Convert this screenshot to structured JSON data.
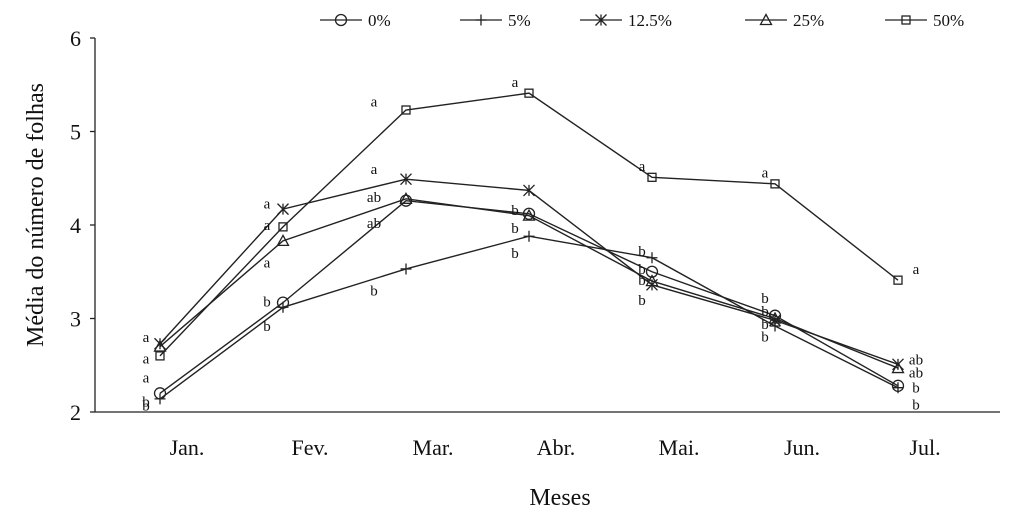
{
  "chart_data": {
    "type": "line",
    "xlabel": "Meses",
    "ylabel": "Média do número de folhas",
    "categories": [
      "Jan.",
      "Fev.",
      "Mar.",
      "Abr.",
      "Mai.",
      "Jun.",
      "Jul."
    ],
    "ylim": [
      2,
      6
    ],
    "yticks": [
      "2",
      "3",
      "4",
      "5",
      "6"
    ],
    "grid": false,
    "legend_position": "top",
    "series": [
      {
        "name": "0%",
        "marker": "circle",
        "values": [
          2.2,
          3.17,
          4.26,
          4.12,
          3.5,
          3.03,
          2.28
        ]
      },
      {
        "name": "5%",
        "marker": "plus",
        "values": [
          2.14,
          3.12,
          3.53,
          3.88,
          3.65,
          2.92,
          2.26
        ]
      },
      {
        "name": "12.5%",
        "marker": "star",
        "values": [
          2.73,
          4.17,
          4.49,
          4.37,
          3.36,
          2.98,
          2.51
        ]
      },
      {
        "name": "25%",
        "marker": "triangle",
        "values": [
          2.7,
          3.83,
          4.28,
          4.1,
          3.4,
          3.0,
          2.47
        ]
      },
      {
        "name": "50%",
        "marker": "square",
        "values": [
          2.6,
          3.98,
          5.23,
          5.41,
          4.51,
          4.44,
          3.41
        ]
      }
    ],
    "annotations": [
      {
        "text": "a",
        "x": "Jan.",
        "y": 2.8
      },
      {
        "text": "a",
        "x": "Jan.",
        "y": 2.57
      },
      {
        "text": "a",
        "x": "Jan.",
        "y": 2.37
      },
      {
        "text": "b",
        "x": "Jan.",
        "y": 2.11
      },
      {
        "text": "b",
        "x": "Jan.",
        "y": 2.07
      },
      {
        "text": "a",
        "x": "Fev.",
        "y": 4.23
      },
      {
        "text": "a",
        "x": "Fev.",
        "y": 4.0
      },
      {
        "text": "a",
        "x": "Fev.",
        "y": 3.6
      },
      {
        "text": "b",
        "x": "Fev.",
        "y": 3.18
      },
      {
        "text": "b",
        "x": "Fev.",
        "y": 2.92
      },
      {
        "text": "a",
        "x": "Mar.",
        "y": 5.32
      },
      {
        "text": "a",
        "x": "Mar.",
        "y": 4.6
      },
      {
        "text": "ab",
        "x": "Mar.",
        "y": 4.3
      },
      {
        "text": "ab",
        "x": "Mar.",
        "y": 4.02
      },
      {
        "text": "b",
        "x": "Mar.",
        "y": 3.3
      },
      {
        "text": "a",
        "x": "Abr.",
        "y": 5.53
      },
      {
        "text": "b",
        "x": "Abr.",
        "y": 4.16
      },
      {
        "text": "b",
        "x": "Abr.",
        "y": 3.97
      },
      {
        "text": "b",
        "x": "Abr.",
        "y": 3.7
      },
      {
        "text": "a",
        "x": "Mai.",
        "y": 4.63
      },
      {
        "text": "b",
        "x": "Mai.",
        "y": 3.72
      },
      {
        "text": "b",
        "x": "Mai.",
        "y": 3.53
      },
      {
        "text": "b",
        "x": "Mai.",
        "y": 3.41
      },
      {
        "text": "b",
        "x": "Mai.",
        "y": 3.2
      },
      {
        "text": "a",
        "x": "Jun.",
        "y": 4.56
      },
      {
        "text": "b",
        "x": "Jun.",
        "y": 3.22
      },
      {
        "text": "b",
        "x": "Jun.",
        "y": 3.08
      },
      {
        "text": "b",
        "x": "Jun.",
        "y": 2.94
      },
      {
        "text": "b",
        "x": "Jun.",
        "y": 2.81
      },
      {
        "text": "a",
        "x": "Jul.",
        "y": 3.53
      },
      {
        "text": "ab",
        "x": "Jul.",
        "y": 2.56
      },
      {
        "text": "ab",
        "x": "Jul.",
        "y": 2.42
      },
      {
        "text": "b",
        "x": "Jul.",
        "y": 2.26
      },
      {
        "text": "b",
        "x": "Jul.",
        "y": 2.08
      }
    ]
  }
}
